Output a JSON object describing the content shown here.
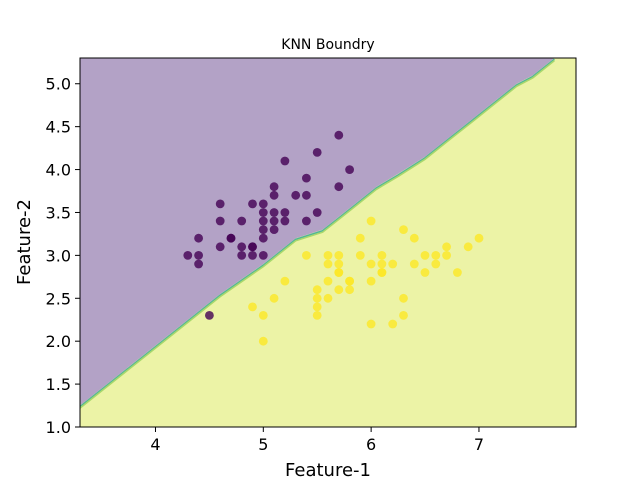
{
  "chart_data": {
    "type": "scatter",
    "title": "KNN Boundry",
    "xlabel": "Feature-1",
    "ylabel": "Feature-2",
    "xlim": [
      3.3,
      7.9
    ],
    "ylim": [
      1.0,
      5.3
    ],
    "x_ticks": [
      "4",
      "5",
      "6",
      "7"
    ],
    "y_ticks": [
      "1.0",
      "1.5",
      "2.0",
      "2.5",
      "3.0",
      "3.5",
      "4.0",
      "4.5",
      "5.0"
    ],
    "grid": false,
    "regions": [
      {
        "class": 0,
        "color": "#b3a2c6"
      },
      {
        "class": 1,
        "color": "#ecf3a6"
      }
    ],
    "decision_boundary": [
      [
        3.3,
        1.25
      ],
      [
        4.0,
        1.95
      ],
      [
        4.6,
        2.55
      ],
      [
        5.0,
        2.9
      ],
      [
        5.3,
        3.2
      ],
      [
        5.55,
        3.3
      ],
      [
        5.7,
        3.45
      ],
      [
        5.85,
        3.6
      ],
      [
        6.05,
        3.8
      ],
      [
        6.25,
        3.95
      ],
      [
        6.5,
        4.15
      ],
      [
        6.75,
        4.4
      ],
      [
        6.95,
        4.6
      ],
      [
        7.15,
        4.8
      ],
      [
        7.35,
        5.0
      ],
      [
        7.5,
        5.1
      ],
      [
        7.7,
        5.3
      ]
    ],
    "series": [
      {
        "class": 0,
        "color": "#440154",
        "points": [
          [
            5.1,
            3.5
          ],
          [
            4.9,
            3.0
          ],
          [
            4.7,
            3.2
          ],
          [
            4.6,
            3.1
          ],
          [
            5.0,
            3.6
          ],
          [
            5.4,
            3.9
          ],
          [
            4.6,
            3.4
          ],
          [
            5.0,
            3.4
          ],
          [
            4.4,
            2.9
          ],
          [
            4.9,
            3.1
          ],
          [
            5.4,
            3.7
          ],
          [
            4.8,
            3.4
          ],
          [
            4.8,
            3.0
          ],
          [
            4.3,
            3.0
          ],
          [
            5.8,
            4.0
          ],
          [
            5.7,
            4.4
          ],
          [
            5.1,
            3.8
          ],
          [
            5.7,
            3.8
          ],
          [
            5.1,
            3.7
          ],
          [
            5.4,
            3.4
          ],
          [
            5.1,
            3.3
          ],
          [
            4.8,
            3.1
          ],
          [
            5.0,
            3.2
          ],
          [
            5.2,
            4.1
          ],
          [
            5.5,
            4.2
          ],
          [
            4.4,
            3.0
          ],
          [
            4.5,
            2.3
          ],
          [
            4.4,
            3.2
          ],
          [
            4.6,
            3.6
          ],
          [
            5.3,
            3.7
          ],
          [
            5.0,
            3.3
          ],
          [
            4.9,
            3.6
          ],
          [
            5.2,
            3.5
          ],
          [
            5.2,
            3.4
          ],
          [
            4.7,
            3.2
          ],
          [
            5.0,
            3.5
          ],
          [
            5.5,
            3.5
          ],
          [
            5.1,
            3.4
          ],
          [
            4.9,
            3.1
          ],
          [
            5.0,
            3.0
          ]
        ]
      },
      {
        "class": 1,
        "color": "#fde725",
        "points": [
          [
            7.0,
            3.2
          ],
          [
            6.4,
            3.2
          ],
          [
            6.9,
            3.1
          ],
          [
            5.5,
            2.3
          ],
          [
            6.5,
            2.8
          ],
          [
            5.7,
            2.8
          ],
          [
            6.3,
            3.3
          ],
          [
            4.9,
            2.4
          ],
          [
            6.6,
            2.9
          ],
          [
            5.2,
            2.7
          ],
          [
            5.0,
            2.0
          ],
          [
            5.9,
            3.0
          ],
          [
            6.0,
            2.2
          ],
          [
            6.1,
            2.9
          ],
          [
            5.6,
            2.9
          ],
          [
            6.7,
            3.1
          ],
          [
            5.6,
            3.0
          ],
          [
            5.8,
            2.7
          ],
          [
            6.2,
            2.2
          ],
          [
            5.6,
            2.5
          ],
          [
            5.9,
            3.2
          ],
          [
            6.1,
            2.8
          ],
          [
            6.3,
            2.5
          ],
          [
            6.4,
            2.9
          ],
          [
            6.6,
            3.0
          ],
          [
            6.8,
            2.8
          ],
          [
            6.7,
            3.0
          ],
          [
            6.0,
            2.9
          ],
          [
            5.7,
            2.6
          ],
          [
            5.5,
            2.4
          ],
          [
            5.8,
            2.7
          ],
          [
            6.0,
            2.7
          ],
          [
            5.4,
            3.0
          ],
          [
            6.0,
            3.4
          ],
          [
            6.3,
            2.3
          ],
          [
            5.5,
            2.5
          ],
          [
            5.5,
            2.6
          ],
          [
            6.1,
            3.0
          ],
          [
            5.8,
            2.6
          ],
          [
            5.0,
            2.3
          ],
          [
            5.6,
            2.7
          ],
          [
            5.7,
            3.0
          ],
          [
            5.7,
            2.9
          ],
          [
            6.2,
            2.9
          ],
          [
            5.1,
            2.5
          ],
          [
            5.7,
            2.8
          ],
          [
            6.1,
            2.8
          ],
          [
            6.5,
            3.0
          ]
        ]
      }
    ]
  }
}
